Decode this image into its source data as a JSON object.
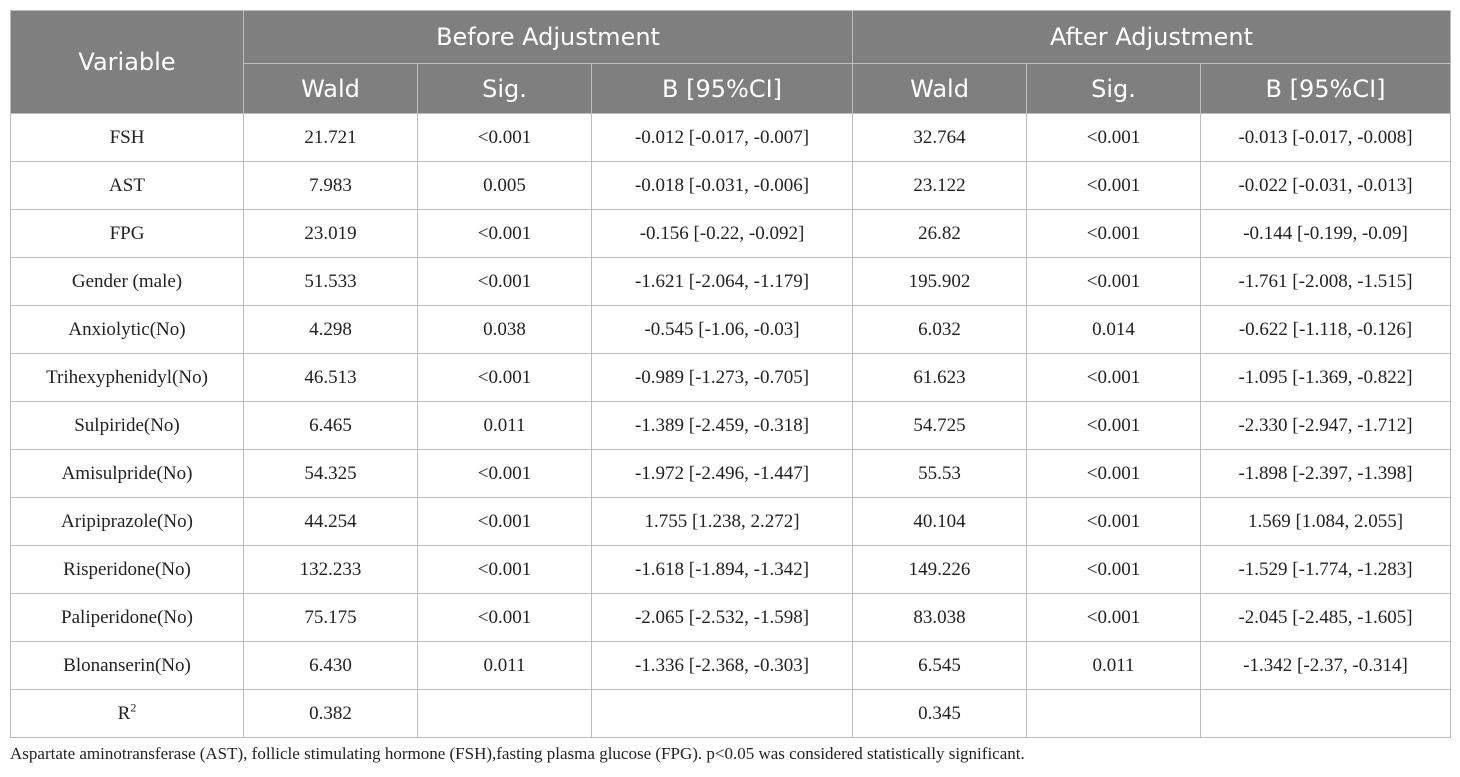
{
  "header": {
    "variable": "Variable",
    "before": "Before Adjustment",
    "after": "After Adjustment",
    "wald": "Wald",
    "sig": "Sig.",
    "b": "B [95%CI]"
  },
  "rows": [
    {
      "variable": "FSH",
      "wald_before": "21.721",
      "sig_before": "<0.001",
      "b_before": "-0.012 [-0.017, -0.007]",
      "wald_after": "32.764",
      "sig_after": "<0.001",
      "b_after": "-0.013 [-0.017, -0.008]"
    },
    {
      "variable": "AST",
      "wald_before": "7.983",
      "sig_before": "0.005",
      "b_before": "-0.018 [-0.031, -0.006]",
      "wald_after": "23.122",
      "sig_after": "<0.001",
      "b_after": "-0.022 [-0.031, -0.013]"
    },
    {
      "variable": "FPG",
      "wald_before": "23.019",
      "sig_before": "<0.001",
      "b_before": "-0.156 [-0.22, -0.092]",
      "wald_after": "26.82",
      "sig_after": "<0.001",
      "b_after": "-0.144 [-0.199, -0.09]"
    },
    {
      "variable": "Gender (male)",
      "wald_before": "51.533",
      "sig_before": "<0.001",
      "b_before": "-1.621 [-2.064, -1.179]",
      "wald_after": "195.902",
      "sig_after": "<0.001",
      "b_after": "-1.761 [-2.008, -1.515]"
    },
    {
      "variable": "Anxiolytic(No)",
      "wald_before": "4.298",
      "sig_before": "0.038",
      "b_before": "-0.545 [-1.06, -0.03]",
      "wald_after": "6.032",
      "sig_after": "0.014",
      "b_after": "-0.622 [-1.118, -0.126]"
    },
    {
      "variable": "Trihexyphenidyl(No)",
      "wald_before": "46.513",
      "sig_before": "<0.001",
      "b_before": "-0.989 [-1.273, -0.705]",
      "wald_after": "61.623",
      "sig_after": "<0.001",
      "b_after": "-1.095 [-1.369, -0.822]"
    },
    {
      "variable": "Sulpiride(No)",
      "wald_before": "6.465",
      "sig_before": "0.011",
      "b_before": "-1.389 [-2.459, -0.318]",
      "wald_after": "54.725",
      "sig_after": "<0.001",
      "b_after": "-2.330 [-2.947, -1.712]"
    },
    {
      "variable": "Amisulpride(No)",
      "wald_before": "54.325",
      "sig_before": "<0.001",
      "b_before": "-1.972 [-2.496, -1.447]",
      "wald_after": "55.53",
      "sig_after": "<0.001",
      "b_after": "-1.898 [-2.397, -1.398]"
    },
    {
      "variable": "Aripiprazole(No)",
      "wald_before": "44.254",
      "sig_before": "<0.001",
      "b_before": "1.755 [1.238, 2.272]",
      "wald_after": "40.104",
      "sig_after": "<0.001",
      "b_after": "1.569 [1.084, 2.055]"
    },
    {
      "variable": "Risperidone(No)",
      "wald_before": "132.233",
      "sig_before": "<0.001",
      "b_before": "-1.618 [-1.894, -1.342]",
      "wald_after": "149.226",
      "sig_after": "<0.001",
      "b_after": "-1.529 [-1.774, -1.283]"
    },
    {
      "variable": "Paliperidone(No)",
      "wald_before": "75.175",
      "sig_before": "<0.001",
      "b_before": "-2.065 [-2.532, -1.598]",
      "wald_after": "83.038",
      "sig_after": "<0.001",
      "b_after": "-2.045 [-2.485, -1.605]"
    },
    {
      "variable": "Blonanserin(No)",
      "wald_before": "6.430",
      "sig_before": "0.011",
      "b_before": "-1.336 [-2.368, -0.303]",
      "wald_after": "6.545",
      "sig_after": "0.011",
      "b_after": "-1.342 [-2.37, -0.314]"
    }
  ],
  "r2_row": {
    "label_base": "R",
    "label_sup": "2",
    "wald_before": "0.382",
    "wald_after": "0.345"
  },
  "footnote": "Aspartate aminotransferase (AST), follicle stimulating hormone (FSH),fasting plasma glucose (FPG). p<0.05 was considered statistically significant."
}
